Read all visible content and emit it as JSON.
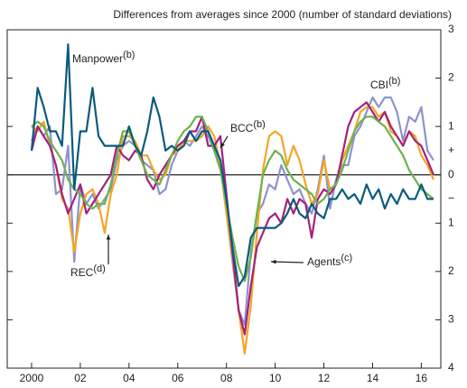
{
  "chart_data": {
    "type": "line",
    "title": "Differences from averages since 2000 (number of standard deviations)",
    "x": [
      2000,
      2000.25,
      2000.5,
      2000.75,
      2001,
      2001.25,
      2001.5,
      2001.75,
      2002,
      2002.25,
      2002.5,
      2002.75,
      2003,
      2003.25,
      2003.5,
      2003.75,
      2004,
      2004.25,
      2004.5,
      2004.75,
      2005,
      2005.25,
      2005.5,
      2005.75,
      2006,
      2006.25,
      2006.5,
      2006.75,
      2007,
      2007.25,
      2007.5,
      2007.75,
      2008,
      2008.25,
      2008.5,
      2008.75,
      2009,
      2009.25,
      2009.5,
      2009.75,
      2010,
      2010.25,
      2010.5,
      2010.75,
      2011,
      2011.25,
      2011.5,
      2011.75,
      2012,
      2012.25,
      2012.5,
      2012.75,
      2013,
      2013.25,
      2013.5,
      2013.75,
      2014,
      2014.25,
      2014.5,
      2014.75,
      2015,
      2015.25,
      2015.5,
      2015.75,
      2016,
      2016.25,
      2016.5
    ],
    "series": [
      {
        "name": "Manpower",
        "note": "(b)",
        "color": "#0b5a7c",
        "values": [
          0.5,
          1.8,
          1.4,
          0.9,
          0.9,
          0.6,
          2.7,
          -0.3,
          0.9,
          0.9,
          1.8,
          0.8,
          0.6,
          0.6,
          0.6,
          0.6,
          1.0,
          0.6,
          0.4,
          0.9,
          1.6,
          1.2,
          0.5,
          0.6,
          0.5,
          0.6,
          0.9,
          0.7,
          0.9,
          0.9,
          0.6,
          0.3,
          -0.5,
          -1.5,
          -2.3,
          -2.1,
          -1.3,
          -1.1,
          -1.1,
          -1.1,
          -1.1,
          -1.0,
          -0.8,
          -0.5,
          -0.8,
          -0.9,
          -0.6,
          -0.8,
          -0.9,
          -0.5,
          -0.5,
          -0.3,
          -0.5,
          -0.4,
          -0.6,
          -0.2,
          -0.5,
          -0.3,
          -0.7,
          -0.4,
          -0.6,
          -0.3,
          -0.5,
          -0.5,
          -0.2,
          -0.5,
          -0.5
        ]
      },
      {
        "name": "CBI",
        "note": "(b)",
        "color": "#8c93cc",
        "values": [
          0.7,
          1.0,
          0.8,
          1.0,
          -0.4,
          -0.3,
          0.6,
          -1.8,
          -0.2,
          -0.6,
          -0.4,
          -0.7,
          -0.5,
          -0.3,
          0.3,
          0.6,
          0.7,
          0.6,
          0.3,
          0.2,
          0.1,
          -0.4,
          -0.3,
          0.2,
          0.5,
          0.7,
          0.6,
          0.8,
          1.0,
          0.8,
          0.5,
          0.2,
          -0.8,
          -1.8,
          -2.8,
          -3.1,
          -1.6,
          -0.8,
          -0.6,
          -0.2,
          -0.3,
          0.2,
          -0.1,
          -0.4,
          -0.3,
          -0.6,
          -0.8,
          -0.3,
          0.4,
          -0.7,
          -0.1,
          0.2,
          0.2,
          0.8,
          1.0,
          1.3,
          1.6,
          1.4,
          1.6,
          1.6,
          1.3,
          0.7,
          1.2,
          1.1,
          1.4,
          0.5,
          0.3
        ]
      },
      {
        "name": "BCC",
        "note": "(b)",
        "color": "#6db34f",
        "values": [
          1.0,
          1.1,
          1.0,
          0.7,
          0.5,
          0.3,
          -0.1,
          -0.3,
          -0.4,
          -0.6,
          -0.7,
          -0.6,
          -0.6,
          -0.2,
          0.4,
          0.9,
          0.9,
          0.6,
          0.3,
          0.0,
          -0.1,
          -0.2,
          0.1,
          0.4,
          0.7,
          0.9,
          1.0,
          1.2,
          1.2,
          0.9,
          0.5,
          0.1,
          -0.6,
          -1.3,
          -1.9,
          -2.2,
          -1.7,
          -0.8,
          0.0,
          0.3,
          0.5,
          0.4,
          0.1,
          -0.1,
          -0.2,
          -0.3,
          -0.4,
          -0.6,
          -0.5,
          -0.3,
          -0.2,
          0.1,
          0.5,
          0.9,
          1.1,
          1.2,
          1.2,
          1.1,
          1.0,
          0.8,
          0.6,
          0.4,
          0.1,
          -0.1,
          -0.3,
          -0.4,
          -0.5
        ]
      },
      {
        "name": "Agents",
        "note": "(c)",
        "color": "#a3217c",
        "values": [
          0.5,
          1.0,
          0.8,
          0.6,
          0.2,
          -0.4,
          -0.8,
          -0.5,
          -0.2,
          -0.8,
          -0.6,
          -0.4,
          -0.2,
          0.0,
          0.6,
          0.4,
          0.3,
          0.5,
          0.4,
          -0.1,
          -0.3,
          0.0,
          0.2,
          0.4,
          0.6,
          0.7,
          0.9,
          0.9,
          1.2,
          0.6,
          0.6,
          0.8,
          -0.4,
          -1.6,
          -2.8,
          -3.3,
          -2.3,
          -1.5,
          -1.2,
          -0.9,
          -0.8,
          -1.0,
          -0.5,
          -0.8,
          -0.5,
          -0.6,
          -1.3,
          -0.5,
          -0.3,
          -0.4,
          -0.2,
          0.4,
          1.0,
          1.3,
          1.4,
          1.5,
          1.3,
          1.1,
          1.3,
          1.0,
          0.8,
          0.6,
          0.9,
          0.7,
          0.6,
          0.3,
          0.0
        ]
      },
      {
        "name": "REC",
        "note": "(d)",
        "color": "#f5a524",
        "values": [
          1.0,
          0.9,
          1.1,
          0.6,
          0.2,
          -0.5,
          -0.7,
          -1.6,
          -0.8,
          -0.4,
          -0.3,
          -0.6,
          -1.2,
          -0.4,
          0.0,
          0.8,
          0.8,
          0.7,
          0.4,
          0.4,
          0.1,
          -0.1,
          0.0,
          0.4,
          0.5,
          0.7,
          0.7,
          0.7,
          0.8,
          1.0,
          0.8,
          0.2,
          -0.8,
          -1.7,
          -2.8,
          -3.7,
          -2.7,
          -1.2,
          0.1,
          0.8,
          0.9,
          0.8,
          0.2,
          0.6,
          0.3,
          -0.2,
          -0.6,
          -0.4,
          0.3,
          -0.3,
          -0.2,
          0.3,
          0.6,
          0.9,
          1.3,
          1.4,
          1.4,
          1.2,
          1.3,
          0.9,
          0.8,
          0.6,
          0.9,
          0.8,
          0.4,
          0.2,
          -0.1
        ]
      }
    ],
    "xlim": [
      1999,
      2016.8
    ],
    "xticks": [
      2000,
      {
        "value": 2002,
        "label": "02"
      },
      {
        "value": 2004,
        "label": "04"
      },
      {
        "value": 2006,
        "label": "06"
      },
      {
        "value": 2008,
        "label": "08"
      },
      {
        "value": 2010,
        "label": "10"
      },
      {
        "value": 2012,
        "label": "12"
      },
      {
        "value": 2014,
        "label": "14"
      },
      {
        "value": 2016,
        "label": "16"
      }
    ],
    "ylim": [
      -4,
      3
    ],
    "yticks": [
      3,
      2,
      1,
      0,
      {
        "value": -1,
        "label": "1"
      },
      {
        "value": -2,
        "label": "2"
      },
      {
        "value": -3,
        "label": "3"
      },
      {
        "value": -4,
        "label": "4"
      }
    ],
    "axis_signs": [
      {
        "value": 0.5,
        "label": "+"
      },
      {
        "value": -0.5,
        "label": "−"
      }
    ]
  }
}
